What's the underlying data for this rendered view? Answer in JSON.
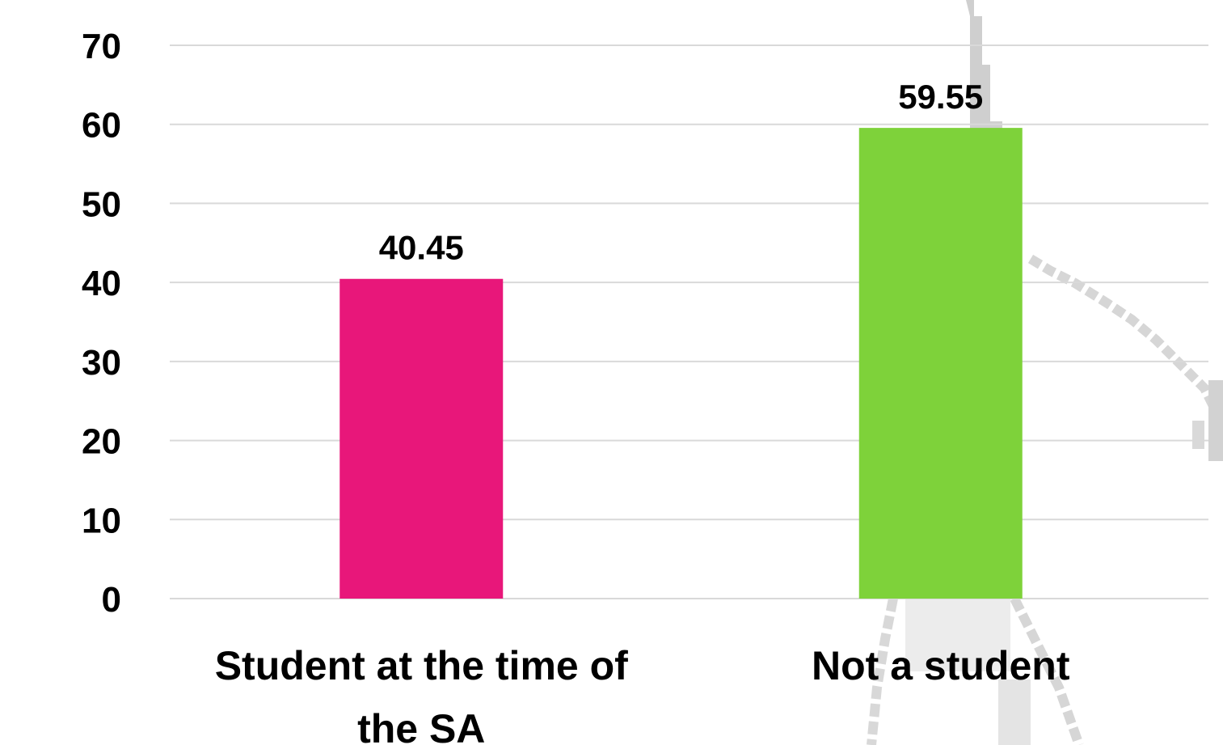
{
  "chart_data": {
    "type": "bar",
    "categories": [
      [
        "Student at the time of",
        "the SA"
      ],
      [
        "Not a student"
      ]
    ],
    "values": [
      40.45,
      59.55
    ],
    "value_labels": [
      "40.45",
      "59.55"
    ],
    "colors": [
      "#E8177A",
      "#7ED23A"
    ],
    "title": "",
    "xlabel": "",
    "ylabel": "",
    "ylim": [
      0,
      70
    ],
    "yticks": [
      0,
      10,
      20,
      30,
      40,
      50,
      60,
      70
    ],
    "grid": true,
    "legend": "none"
  }
}
